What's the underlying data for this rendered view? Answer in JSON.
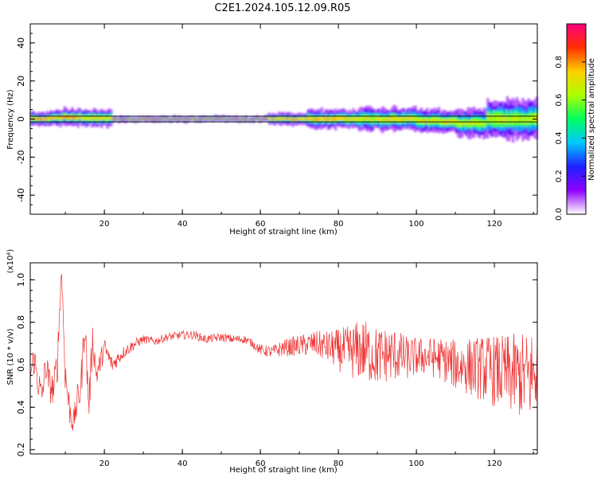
{
  "title": "C2E1.2024.105.12.09.R05",
  "chart_data": [
    {
      "type": "heatmap",
      "title": "C2E1.2024.105.12.09.R05",
      "xlabel": "Height of straight line (km)",
      "ylabel": "Frequency (Hz)",
      "xlim": [
        1,
        131
      ],
      "ylim": [
        -50,
        50
      ],
      "x_ticks": [
        "20",
        "40",
        "60",
        "80",
        "100",
        "120"
      ],
      "y_ticks": [
        "-40",
        "-20",
        "0",
        "20",
        "40"
      ],
      "band": [
        {
          "x_start": 1,
          "x_end": 5,
          "center": 0.0,
          "halfwidth": 3.5,
          "amplitude": 0.85
        },
        {
          "x_start": 5,
          "x_end": 9,
          "center": 0.5,
          "halfwidth": 4.0,
          "amplitude": 0.8
        },
        {
          "x_start": 9,
          "x_end": 14,
          "center": 1.0,
          "halfwidth": 4.5,
          "amplitude": 0.85
        },
        {
          "x_start": 14,
          "x_end": 22,
          "center": 0.5,
          "halfwidth": 4.5,
          "amplitude": 0.75
        },
        {
          "x_start": 22,
          "x_end": 62,
          "center": 0.0,
          "halfwidth": 1.5,
          "amplitude": 0.95
        },
        {
          "x_start": 62,
          "x_end": 72,
          "center": 0.0,
          "halfwidth": 3.0,
          "amplitude": 0.85
        },
        {
          "x_start": 72,
          "x_end": 85,
          "center": 0.0,
          "halfwidth": 5.0,
          "amplitude": 0.8
        },
        {
          "x_start": 85,
          "x_end": 100,
          "center": 0.0,
          "halfwidth": 6.0,
          "amplitude": 0.75
        },
        {
          "x_start": 100,
          "x_end": 110,
          "center": -1.0,
          "halfwidth": 6.0,
          "amplitude": 0.75
        },
        {
          "x_start": 110,
          "x_end": 118,
          "center": -2.0,
          "halfwidth": 7.0,
          "amplitude": 0.7
        },
        {
          "x_start": 118,
          "x_end": 131,
          "center": 0.0,
          "halfwidth": 10.0,
          "amplitude": 0.7
        }
      ],
      "colorbar": {
        "label": "Normalized spectral amplitude",
        "range": [
          0,
          1
        ],
        "ticks": [
          "0.0",
          "0.2",
          "0.4",
          "0.6",
          "0.8"
        ],
        "colors": [
          "#ffffff",
          "#8f00ff",
          "#2020ff",
          "#00c8ff",
          "#00ff60",
          "#aaff00",
          "#ffd000",
          "#ff3000",
          "#ff0080"
        ]
      }
    },
    {
      "type": "line",
      "xlabel": "Height of straight line (km)",
      "ylabel": "SNR (10 * v/v)",
      "ylabel_exponent": "(x10⁴)",
      "xlim": [
        1,
        131
      ],
      "ylim": [
        0.18,
        1.08
      ],
      "x_ticks": [
        "20",
        "40",
        "60",
        "80",
        "100",
        "120"
      ],
      "y_ticks": [
        "0.2",
        "0.4",
        "0.6",
        "0.8",
        "1.0"
      ],
      "color": "#ee3333",
      "series": [
        {
          "x": [
            1,
            2,
            3,
            4,
            5,
            6,
            7,
            8,
            9,
            10,
            11,
            12,
            13,
            14,
            15,
            16,
            17,
            18,
            20,
            22,
            25,
            28,
            30,
            33,
            36,
            40,
            43,
            46,
            50,
            53,
            56,
            58,
            60,
            63,
            66,
            70,
            74,
            78,
            82,
            86,
            90,
            94,
            98,
            102,
            106,
            110,
            114,
            118,
            122,
            126,
            129,
            131
          ],
          "values": [
            0.55,
            0.63,
            0.52,
            0.45,
            0.6,
            0.5,
            0.48,
            0.62,
            1.06,
            0.55,
            0.4,
            0.32,
            0.42,
            0.5,
            0.8,
            0.4,
            0.72,
            0.55,
            0.68,
            0.6,
            0.66,
            0.7,
            0.72,
            0.71,
            0.73,
            0.74,
            0.74,
            0.72,
            0.73,
            0.72,
            0.72,
            0.7,
            0.67,
            0.66,
            0.68,
            0.69,
            0.7,
            0.68,
            0.66,
            0.67,
            0.64,
            0.65,
            0.63,
            0.64,
            0.63,
            0.6,
            0.59,
            0.58,
            0.56,
            0.55,
            0.54,
            0.58
          ],
          "noise": [
            0.04,
            0.08,
            0.08,
            0.06,
            0.08,
            0.08,
            0.08,
            0.1,
            0.04,
            0.1,
            0.08,
            0.05,
            0.08,
            0.1,
            0.08,
            0.1,
            0.08,
            0.06,
            0.05,
            0.04,
            0.03,
            0.025,
            0.02,
            0.02,
            0.02,
            0.02,
            0.02,
            0.02,
            0.02,
            0.02,
            0.02,
            0.02,
            0.025,
            0.03,
            0.04,
            0.05,
            0.06,
            0.08,
            0.12,
            0.15,
            0.14,
            0.13,
            0.1,
            0.09,
            0.1,
            0.12,
            0.14,
            0.16,
            0.18,
            0.2,
            0.22,
            0.22
          ]
        }
      ]
    }
  ]
}
